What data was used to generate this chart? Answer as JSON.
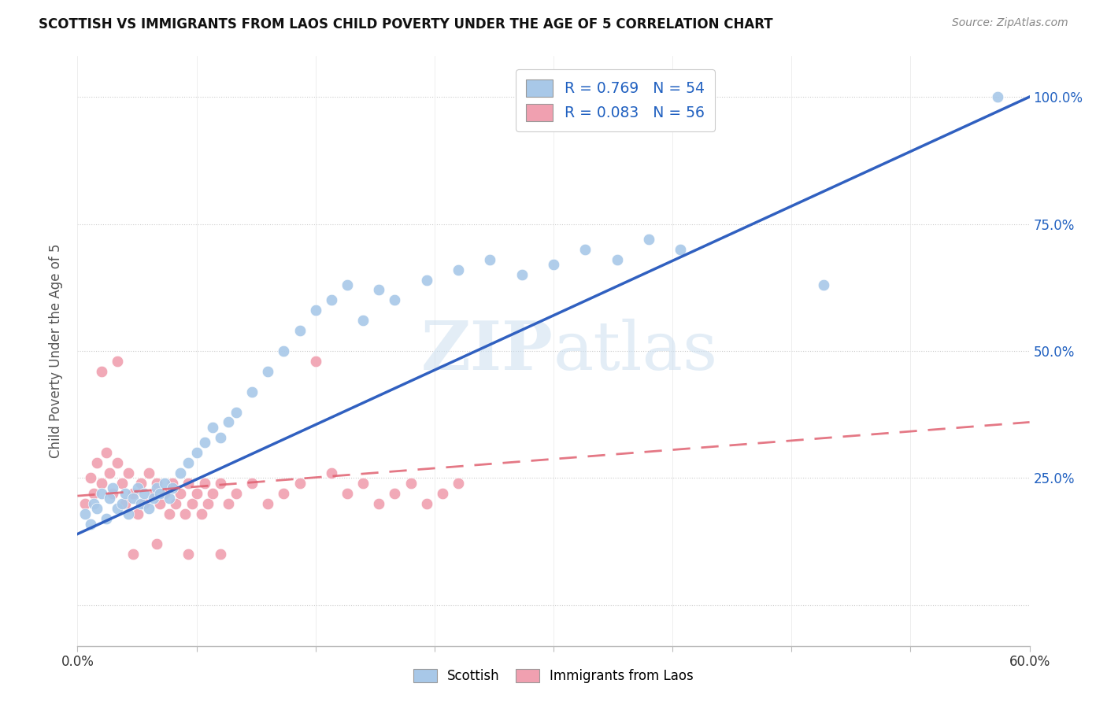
{
  "title": "SCOTTISH VS IMMIGRANTS FROM LAOS CHILD POVERTY UNDER THE AGE OF 5 CORRELATION CHART",
  "source": "Source: ZipAtlas.com",
  "ylabel": "Child Poverty Under the Age of 5",
  "legend_top": {
    "scottish": {
      "R": "0.769",
      "N": "54"
    },
    "laos": {
      "R": "0.083",
      "N": "56"
    }
  },
  "scottish_color": "#a8c8e8",
  "scottish_line_color": "#3060c0",
  "laos_color": "#f0a0b0",
  "laos_line_color": "#e06070",
  "background_color": "#ffffff",
  "xlim": [
    0.0,
    0.6
  ],
  "ylim": [
    -0.08,
    1.08
  ],
  "scottish_x": [
    0.005,
    0.008,
    0.01,
    0.012,
    0.015,
    0.018,
    0.02,
    0.022,
    0.025,
    0.028,
    0.03,
    0.032,
    0.035,
    0.038,
    0.04,
    0.042,
    0.045,
    0.048,
    0.05,
    0.052,
    0.055,
    0.058,
    0.06,
    0.065,
    0.07,
    0.075,
    0.08,
    0.085,
    0.09,
    0.095,
    0.1,
    0.11,
    0.12,
    0.13,
    0.14,
    0.15,
    0.16,
    0.17,
    0.18,
    0.19,
    0.2,
    0.22,
    0.24,
    0.26,
    0.28,
    0.3,
    0.32,
    0.34,
    0.36,
    0.38,
    0.32,
    0.38,
    0.47,
    0.58
  ],
  "scottish_y": [
    0.18,
    0.16,
    0.2,
    0.19,
    0.22,
    0.17,
    0.21,
    0.23,
    0.19,
    0.2,
    0.22,
    0.18,
    0.21,
    0.23,
    0.2,
    0.22,
    0.19,
    0.21,
    0.23,
    0.22,
    0.24,
    0.21,
    0.23,
    0.26,
    0.28,
    0.3,
    0.32,
    0.35,
    0.33,
    0.36,
    0.38,
    0.42,
    0.46,
    0.5,
    0.54,
    0.58,
    0.6,
    0.63,
    0.56,
    0.62,
    0.6,
    0.64,
    0.66,
    0.68,
    0.65,
    0.67,
    0.7,
    0.68,
    0.72,
    0.7,
    1.0,
    1.0,
    0.63,
    1.0
  ],
  "laos_x": [
    0.005,
    0.008,
    0.01,
    0.012,
    0.015,
    0.018,
    0.02,
    0.022,
    0.025,
    0.028,
    0.03,
    0.032,
    0.035,
    0.038,
    0.04,
    0.042,
    0.045,
    0.048,
    0.05,
    0.052,
    0.055,
    0.058,
    0.06,
    0.062,
    0.065,
    0.068,
    0.07,
    0.072,
    0.075,
    0.078,
    0.08,
    0.082,
    0.085,
    0.09,
    0.095,
    0.1,
    0.11,
    0.12,
    0.13,
    0.14,
    0.15,
    0.16,
    0.17,
    0.18,
    0.19,
    0.2,
    0.21,
    0.22,
    0.23,
    0.24,
    0.015,
    0.025,
    0.035,
    0.05,
    0.07,
    0.09
  ],
  "laos_y": [
    0.2,
    0.25,
    0.22,
    0.28,
    0.24,
    0.3,
    0.26,
    0.22,
    0.28,
    0.24,
    0.2,
    0.26,
    0.22,
    0.18,
    0.24,
    0.2,
    0.26,
    0.22,
    0.24,
    0.2,
    0.22,
    0.18,
    0.24,
    0.2,
    0.22,
    0.18,
    0.24,
    0.2,
    0.22,
    0.18,
    0.24,
    0.2,
    0.22,
    0.24,
    0.2,
    0.22,
    0.24,
    0.2,
    0.22,
    0.24,
    0.48,
    0.26,
    0.22,
    0.24,
    0.2,
    0.22,
    0.24,
    0.2,
    0.22,
    0.24,
    0.46,
    0.48,
    0.1,
    0.12,
    0.1,
    0.1
  ],
  "scottish_line_x": [
    0.0,
    0.6
  ],
  "scottish_line_y": [
    0.14,
    1.0
  ],
  "laos_line_x": [
    0.0,
    0.6
  ],
  "laos_line_y": [
    0.215,
    0.36
  ],
  "ytick_vals": [
    0.0,
    0.25,
    0.5,
    0.75,
    1.0
  ],
  "ytick_labels_right": [
    "",
    "25.0%",
    "50.0%",
    "75.0%",
    "100.0%"
  ],
  "xtick_vals": [
    0.0,
    0.075,
    0.15,
    0.225,
    0.3,
    0.375,
    0.45,
    0.525,
    0.6
  ],
  "xtick_labels": [
    "0.0%",
    "",
    "",
    "",
    "",
    "",
    "",
    "",
    "60.0%"
  ]
}
